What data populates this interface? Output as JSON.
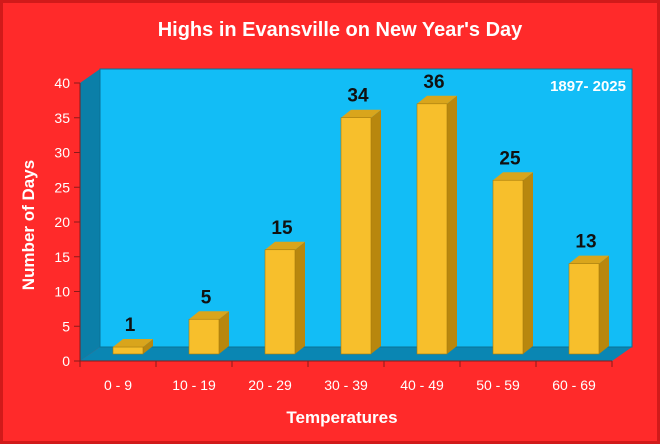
{
  "chart_data": {
    "type": "bar",
    "title": "Highs in Evansville on New Year's Day",
    "annotation": "1897- 2025",
    "xlabel": "Temperatures",
    "ylabel": "Number of Days",
    "categories": [
      "0 - 9",
      "10 - 19",
      "20 - 29",
      "30 - 39",
      "40 - 49",
      "50 - 59",
      "60 - 69"
    ],
    "values": [
      1,
      5,
      15,
      34,
      36,
      25,
      13
    ],
    "ylim": [
      0,
      40
    ],
    "yticks": [
      "0",
      "5",
      "10",
      "15",
      "20",
      "25",
      "30",
      "35",
      "40"
    ],
    "grid": false,
    "legend": "none",
    "colors": {
      "background": "#ff2a2a",
      "plot_area": "#12bdf6",
      "wall_side": "#0b7fa8",
      "floor": "#0a86b3",
      "bar_front": "#f7bf2c",
      "bar_side": "#b8870e",
      "bar_top": "#d9a51c"
    }
  }
}
